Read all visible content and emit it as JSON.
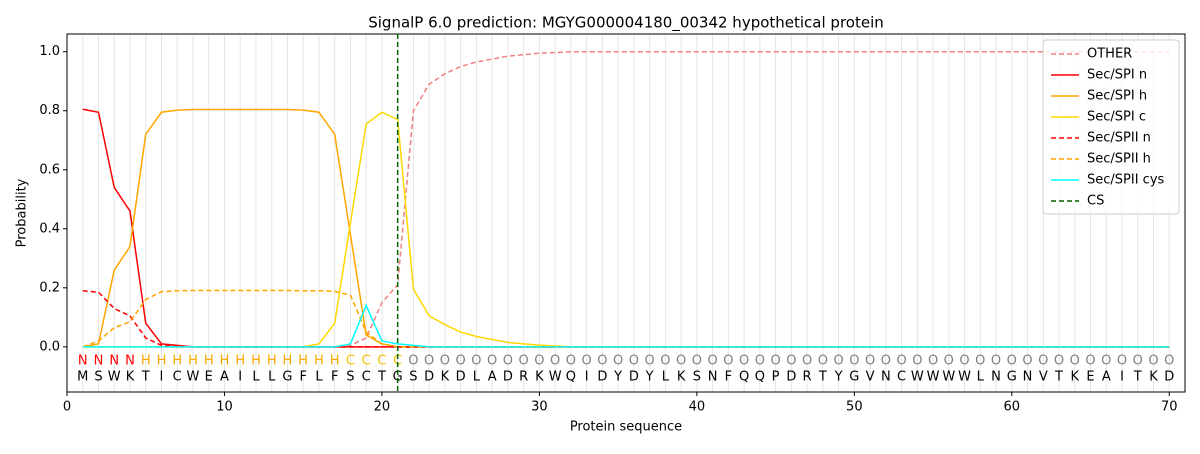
{
  "chart_data": {
    "type": "line",
    "title": "SignalP 6.0 prediction: MGYG000004180_00342 hypothetical protein",
    "x_label": "Protein sequence",
    "y_label": "Probability",
    "xlim": [
      0,
      71
    ],
    "ylim": [
      -0.153,
      1.06
    ],
    "xticks": [
      0,
      10,
      20,
      30,
      40,
      50,
      60,
      70
    ],
    "yticks": [
      {
        "value": 0,
        "label": "0.0"
      },
      0.2,
      0.4,
      0.6,
      0.8,
      {
        "value": 1,
        "label": "1.0"
      }
    ],
    "position_grid": true,
    "legend": "upper right",
    "x": [
      1,
      2,
      3,
      4,
      5,
      6,
      7,
      8,
      9,
      10,
      11,
      12,
      13,
      14,
      15,
      16,
      17,
      18,
      19,
      20,
      21,
      22,
      23,
      24,
      25,
      26,
      27,
      28,
      29,
      30,
      31,
      32,
      33,
      34,
      35,
      36,
      37,
      38,
      39,
      40,
      41,
      42,
      43,
      44,
      45,
      46,
      47,
      48,
      49,
      50,
      51,
      52,
      53,
      54,
      55,
      56,
      57,
      58,
      59,
      60,
      61,
      62,
      63,
      64,
      65,
      66,
      67,
      68,
      69,
      70
    ],
    "sequence": [
      "M",
      "S",
      "W",
      "K",
      "T",
      "I",
      "C",
      "W",
      "E",
      "A",
      "I",
      "L",
      "L",
      "G",
      "F",
      "L",
      "F",
      "S",
      "C",
      "T",
      "G",
      "S",
      "D",
      "K",
      "D",
      "L",
      "A",
      "D",
      "R",
      "K",
      "W",
      "Q",
      "I",
      "D",
      "Y",
      "D",
      "Y",
      "L",
      "K",
      "S",
      "N",
      "F",
      "Q",
      "Q",
      "P",
      "D",
      "R",
      "T",
      "Y",
      "G",
      "V",
      "N",
      "C",
      "W",
      "W",
      "W",
      "W",
      "L",
      "N",
      "G",
      "N",
      "V",
      "T",
      "K",
      "E",
      "A",
      "I",
      "T",
      "K",
      "D"
    ],
    "regions": [
      "N",
      "N",
      "N",
      "N",
      "H",
      "H",
      "H",
      "H",
      "H",
      "H",
      "H",
      "H",
      "H",
      "H",
      "H",
      "H",
      "H",
      "C",
      "C",
      "C",
      "C",
      "O",
      "O",
      "O",
      "O",
      "O",
      "O",
      "O",
      "O",
      "O",
      "O",
      "O",
      "O",
      "O",
      "O",
      "O",
      "O",
      "O",
      "O",
      "O",
      "O",
      "O",
      "O",
      "O",
      "O",
      "O",
      "O",
      "O",
      "O",
      "O",
      "O",
      "O",
      "O",
      "O",
      "O",
      "O",
      "O",
      "O",
      "O",
      "O",
      "O",
      "O",
      "O",
      "O",
      "O",
      "O",
      "O",
      "O",
      "O",
      "O"
    ],
    "region_colors": {
      "N": "#ff0000",
      "H": "#ffa500",
      "C": "#f2c200",
      "O": "#808080"
    },
    "series": [
      {
        "name": "OTHER",
        "color": "#f08080",
        "dashed": true,
        "values": [
          0,
          0,
          0,
          0,
          0,
          0,
          0,
          0,
          0,
          0,
          0,
          0,
          0,
          0,
          0,
          0,
          0,
          0.005,
          0.03,
          0.15,
          0.21,
          0.8,
          0.89,
          0.925,
          0.95,
          0.965,
          0.975,
          0.985,
          0.99,
          0.995,
          0.997,
          1,
          1,
          1,
          1,
          1,
          1,
          1,
          1,
          1,
          1,
          1,
          1,
          1,
          1,
          1,
          1,
          1,
          1,
          1,
          1,
          1,
          1,
          1,
          1,
          1,
          1,
          1,
          1,
          1,
          1,
          1,
          1,
          1,
          1,
          1,
          1,
          1,
          1,
          1
        ]
      },
      {
        "name": "Sec/SPI n",
        "color": "#ff0000",
        "dashed": false,
        "values": [
          0.805,
          0.795,
          0.54,
          0.46,
          0.08,
          0.01,
          0.005,
          0,
          0,
          0,
          0,
          0,
          0,
          0,
          0,
          0,
          0,
          0,
          0,
          0,
          0,
          0,
          0,
          0,
          0,
          0,
          0,
          0,
          0,
          0,
          0,
          0,
          0,
          0,
          0,
          0,
          0,
          0,
          0,
          0,
          0,
          0,
          0,
          0,
          0,
          0,
          0,
          0,
          0,
          0,
          0,
          0,
          0,
          0,
          0,
          0,
          0,
          0,
          0,
          0,
          0,
          0,
          0,
          0,
          0,
          0,
          0,
          0,
          0,
          0
        ]
      },
      {
        "name": "Sec/SPI h",
        "color": "#ffa500",
        "dashed": false,
        "values": [
          0,
          0.01,
          0.26,
          0.34,
          0.72,
          0.795,
          0.802,
          0.804,
          0.804,
          0.804,
          0.804,
          0.804,
          0.804,
          0.804,
          0.802,
          0.795,
          0.72,
          0.38,
          0.04,
          0.01,
          0,
          0,
          0,
          0,
          0,
          0,
          0,
          0,
          0,
          0,
          0,
          0,
          0,
          0,
          0,
          0,
          0,
          0,
          0,
          0,
          0,
          0,
          0,
          0,
          0,
          0,
          0,
          0,
          0,
          0,
          0,
          0,
          0,
          0,
          0,
          0,
          0,
          0,
          0,
          0,
          0,
          0,
          0,
          0,
          0,
          0,
          0,
          0,
          0,
          0
        ]
      },
      {
        "name": "Sec/SPI c",
        "color": "#ffd700",
        "dashed": false,
        "values": [
          0,
          0,
          0,
          0,
          0,
          0,
          0,
          0,
          0,
          0,
          0,
          0,
          0,
          0,
          0,
          0.01,
          0.08,
          0.42,
          0.755,
          0.795,
          0.77,
          0.195,
          0.105,
          0.075,
          0.05,
          0.035,
          0.025,
          0.015,
          0.01,
          0.006,
          0.003,
          0,
          0,
          0,
          0,
          0,
          0,
          0,
          0,
          0,
          0,
          0,
          0,
          0,
          0,
          0,
          0,
          0,
          0,
          0,
          0,
          0,
          0,
          0,
          0,
          0,
          0,
          0,
          0,
          0,
          0,
          0,
          0,
          0,
          0,
          0,
          0,
          0,
          0,
          0
        ]
      },
      {
        "name": "Sec/SPII n",
        "color": "#ff0000",
        "dashed": true,
        "values": [
          0.19,
          0.185,
          0.13,
          0.105,
          0.03,
          0.005,
          0,
          0,
          0,
          0,
          0,
          0,
          0,
          0,
          0,
          0,
          0,
          0,
          0,
          0,
          0,
          0,
          0,
          0,
          0,
          0,
          0,
          0,
          0,
          0,
          0,
          0,
          0,
          0,
          0,
          0,
          0,
          0,
          0,
          0,
          0,
          0,
          0,
          0,
          0,
          0,
          0,
          0,
          0,
          0,
          0,
          0,
          0,
          0,
          0,
          0,
          0,
          0,
          0,
          0,
          0,
          0,
          0,
          0,
          0,
          0,
          0,
          0,
          0,
          0
        ]
      },
      {
        "name": "Sec/SPII h",
        "color": "#ffa500",
        "dashed": true,
        "values": [
          0,
          0.02,
          0.065,
          0.085,
          0.16,
          0.187,
          0.19,
          0.191,
          0.191,
          0.191,
          0.191,
          0.191,
          0.191,
          0.191,
          0.19,
          0.19,
          0.188,
          0.175,
          0.05,
          0.01,
          0,
          0,
          0,
          0,
          0,
          0,
          0,
          0,
          0,
          0,
          0,
          0,
          0,
          0,
          0,
          0,
          0,
          0,
          0,
          0,
          0,
          0,
          0,
          0,
          0,
          0,
          0,
          0,
          0,
          0,
          0,
          0,
          0,
          0,
          0,
          0,
          0,
          0,
          0,
          0,
          0,
          0,
          0,
          0,
          0,
          0,
          0,
          0,
          0,
          0
        ]
      },
      {
        "name": "Sec/SPII cys",
        "color": "#00ffff",
        "dashed": false,
        "values": [
          0,
          0,
          0,
          0,
          0,
          0,
          0,
          0,
          0,
          0,
          0,
          0,
          0,
          0,
          0,
          0,
          0,
          0.01,
          0.14,
          0.02,
          0.01,
          0.005,
          0,
          0,
          0,
          0,
          0,
          0,
          0,
          0,
          0,
          0,
          0,
          0,
          0,
          0,
          0,
          0,
          0,
          0,
          0,
          0,
          0,
          0,
          0,
          0,
          0,
          0,
          0,
          0,
          0,
          0,
          0,
          0,
          0,
          0,
          0,
          0,
          0,
          0,
          0,
          0,
          0,
          0,
          0,
          0,
          0,
          0,
          0,
          0
        ]
      }
    ],
    "cs": {
      "name": "CS",
      "x": 21,
      "color": "#006400"
    }
  }
}
